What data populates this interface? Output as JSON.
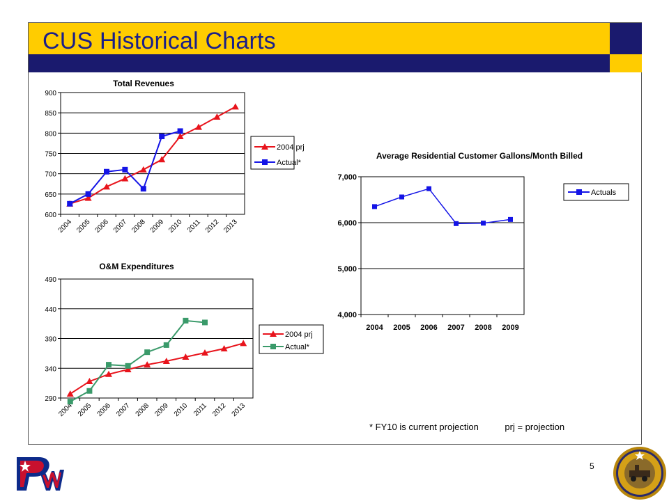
{
  "slide": {
    "title": "CUS Historical Charts",
    "page_number": "5",
    "footnote": "* FY10 is current projection",
    "footnote_prj": "prj = projection"
  },
  "colors": {
    "title_bar": "#ffcc00",
    "title_text": "#1a1f8a",
    "navy": "#1a1a6e",
    "series_red": "#e8141c",
    "series_blue": "#1414e6",
    "series_green": "#3a9a6a"
  },
  "icons": {
    "left_logo": "pw-logo",
    "right_seal": "city-of-houston-seal"
  },
  "chart_data": [
    {
      "id": "total-revenues",
      "type": "line",
      "title": "Total Revenues",
      "categories": [
        "2004",
        "2005",
        "2006",
        "2007",
        "2008",
        "2009",
        "2010",
        "2011",
        "2012",
        "2013"
      ],
      "ylim": [
        600,
        900
      ],
      "yticks": [
        "600",
        "650",
        "700",
        "750",
        "800",
        "850",
        "900"
      ],
      "grid": true,
      "legend_position": "right",
      "series": [
        {
          "name": "2004 prj",
          "color": "#e8141c",
          "marker": "triangle",
          "values": [
            626,
            640,
            668,
            688,
            710,
            735,
            792,
            815,
            840,
            865
          ]
        },
        {
          "name": "Actual*",
          "color": "#1414e6",
          "marker": "square",
          "values": [
            626,
            650,
            705,
            710,
            663,
            792,
            805,
            null,
            null,
            null
          ]
        }
      ]
    },
    {
      "id": "om-expenditures",
      "type": "line",
      "title": "O&M Expenditures",
      "categories": [
        "2004",
        "2005",
        "2006",
        "2007",
        "2008",
        "2009",
        "2010",
        "2011",
        "2012",
        "2013"
      ],
      "ylim": [
        290,
        490
      ],
      "yticks": [
        "290",
        "340",
        "390",
        "440",
        "490"
      ],
      "grid": true,
      "legend_position": "right",
      "series": [
        {
          "name": "2004 prj",
          "color": "#e8141c",
          "marker": "triangle",
          "values": [
            297,
            318,
            330,
            338,
            346,
            352,
            359,
            366,
            373,
            382
          ]
        },
        {
          "name": "Actual*",
          "color": "#3a9a6a",
          "marker": "square",
          "values": [
            284,
            302,
            346,
            344,
            367,
            379,
            420,
            417,
            null,
            null
          ]
        }
      ]
    },
    {
      "id": "avg-residential-gallons",
      "type": "line",
      "title": "Average Residential Customer Gallons/Month  Billed",
      "categories": [
        "2004",
        "2005",
        "2006",
        "2007",
        "2008",
        "2009"
      ],
      "ylim": [
        4000,
        7000
      ],
      "yticks": [
        "4,000",
        "5,000",
        "6,000",
        "7,000"
      ],
      "grid": true,
      "legend_position": "right",
      "series": [
        {
          "name": "Actuals",
          "color": "#1414e6",
          "marker": "square",
          "values": [
            6350,
            6560,
            6740,
            5980,
            5990,
            6070
          ]
        }
      ]
    }
  ]
}
